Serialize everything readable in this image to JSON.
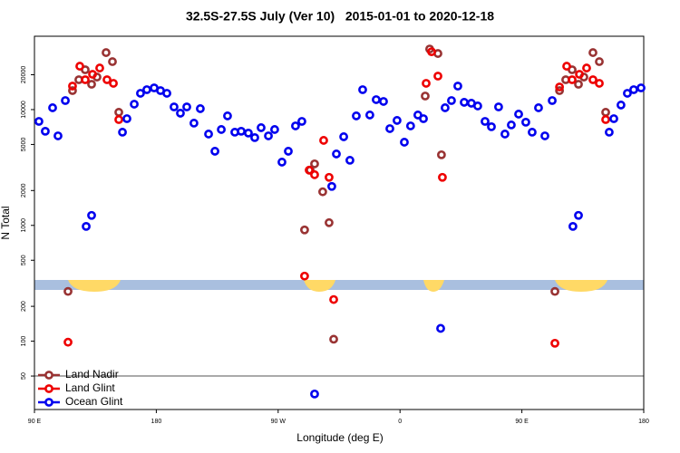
{
  "chart_data": {
    "type": "scatter",
    "title": "32.5S-27.5S July (Ver 10)   2015-01-01 to 2020-12-18",
    "x_label": "Longitude (deg E)",
    "y_label": "N Total",
    "xlim": [
      90,
      540
    ],
    "xticks": [
      {
        "value": 90,
        "label": "90 E"
      },
      {
        "value": 180,
        "label": "180"
      },
      {
        "value": 270,
        "label": "90 W"
      },
      {
        "value": 360,
        "label": "0"
      },
      {
        "value": 450,
        "label": "90 E"
      },
      {
        "value": 540,
        "label": "180"
      }
    ],
    "ylim": [
      25.7,
      43000
    ],
    "log_y": true,
    "yticks": [
      50,
      100,
      200,
      500,
      1000,
      2000,
      5000,
      10000,
      20000
    ],
    "legend": "bottom-left",
    "series": [
      {
        "name": "Land Nadir",
        "color": "#993333",
        "x": [
          114.8,
          118.1,
          122.8,
          127.5,
          132.2,
          136.2,
          142.9,
          147.6,
          152.3,
          289.5,
          293.6,
          296.9,
          302.9,
          307.6,
          311,
          378.6,
          381.9,
          388,
          390.6,
          474.4,
          477.8,
          482.4,
          487.1,
          491.8,
          495.8,
          502.5,
          507.2,
          511.9
        ],
        "values": [
          269,
          14590,
          18110,
          22080,
          16550,
          19100,
          31050,
          25950,
          9480,
          914,
          3000,
          3400,
          1950,
          1055,
          104,
          13100,
          33350,
          30500,
          4070,
          269,
          14590,
          18110,
          22080,
          16550,
          19100,
          31050,
          25950,
          9480
        ]
      },
      {
        "name": "Land Glint",
        "color": "#ee0000",
        "x": [
          114.8,
          118.1,
          123.5,
          127.5,
          132.9,
          138.2,
          143.6,
          148.3,
          152.3,
          289.5,
          292.9,
          296.9,
          303.6,
          307.6,
          311,
          379.3,
          383.3,
          388,
          391.3,
          474.4,
          477.8,
          483.1,
          487.1,
          492.5,
          497.8,
          502.5,
          507.2,
          511.9
        ],
        "values": [
          98,
          15960,
          23700,
          18110,
          20170,
          22860,
          18110,
          16860,
          8200,
          365,
          3000,
          2740,
          5420,
          2600,
          229,
          16860,
          31600,
          19460,
          2600,
          96,
          15680,
          23700,
          18110,
          20170,
          22860,
          18110,
          16860,
          8200
        ]
      },
      {
        "name": "Ocean Glint",
        "color": "#0000ee",
        "x": [
          93.3,
          98,
          103.4,
          107.4,
          112.8,
          128.2,
          132.2,
          155,
          158.3,
          163.7,
          168.3,
          173,
          178.4,
          183.1,
          187.8,
          193.1,
          197.8,
          202.5,
          207.8,
          212.5,
          218.6,
          223.3,
          228,
          232.6,
          238,
          242.7,
          248,
          252.7,
          257.4,
          262.8,
          267.4,
          272.8,
          277.5,
          282.8,
          287.5,
          296.9,
          309.6,
          313,
          318.4,
          323,
          327.7,
          332.4,
          337.7,
          342.4,
          347.8,
          352.5,
          357.8,
          363.2,
          367.8,
          373.2,
          377.3,
          390,
          393.3,
          398,
          402.7,
          407.4,
          412.7,
          417.4,
          422.8,
          427.5,
          432.8,
          437.5,
          442.2,
          447.6,
          452.9,
          457.6,
          462.3,
          467,
          472.4,
          487.7,
          491.8,
          514.5,
          517.9,
          523.2,
          527.9,
          532.6,
          538
        ],
        "values": [
          7910,
          6500,
          10370,
          5930,
          11970,
          980,
          1220,
          6380,
          8350,
          11140,
          13830,
          14860,
          15400,
          14590,
          13830,
          10550,
          9310,
          10550,
          7640,
          10190,
          6150,
          4370,
          6730,
          8820,
          6380,
          6500,
          6270,
          5730,
          6980,
          5930,
          6730,
          3520,
          4370,
          7230,
          7910,
          35,
          2170,
          4140,
          5830,
          3650,
          8820,
          14860,
          8980,
          12190,
          11760,
          6850,
          8060,
          5230,
          7230,
          8980,
          8350,
          129,
          10370,
          11970,
          15960,
          11560,
          11350,
          10750,
          7910,
          7110,
          10550,
          6150,
          7370,
          9140,
          7780,
          6380,
          10370,
          5930,
          11970,
          980,
          1220,
          6380,
          8350,
          10950,
          13830,
          14860,
          15400
        ]
      }
    ]
  }
}
